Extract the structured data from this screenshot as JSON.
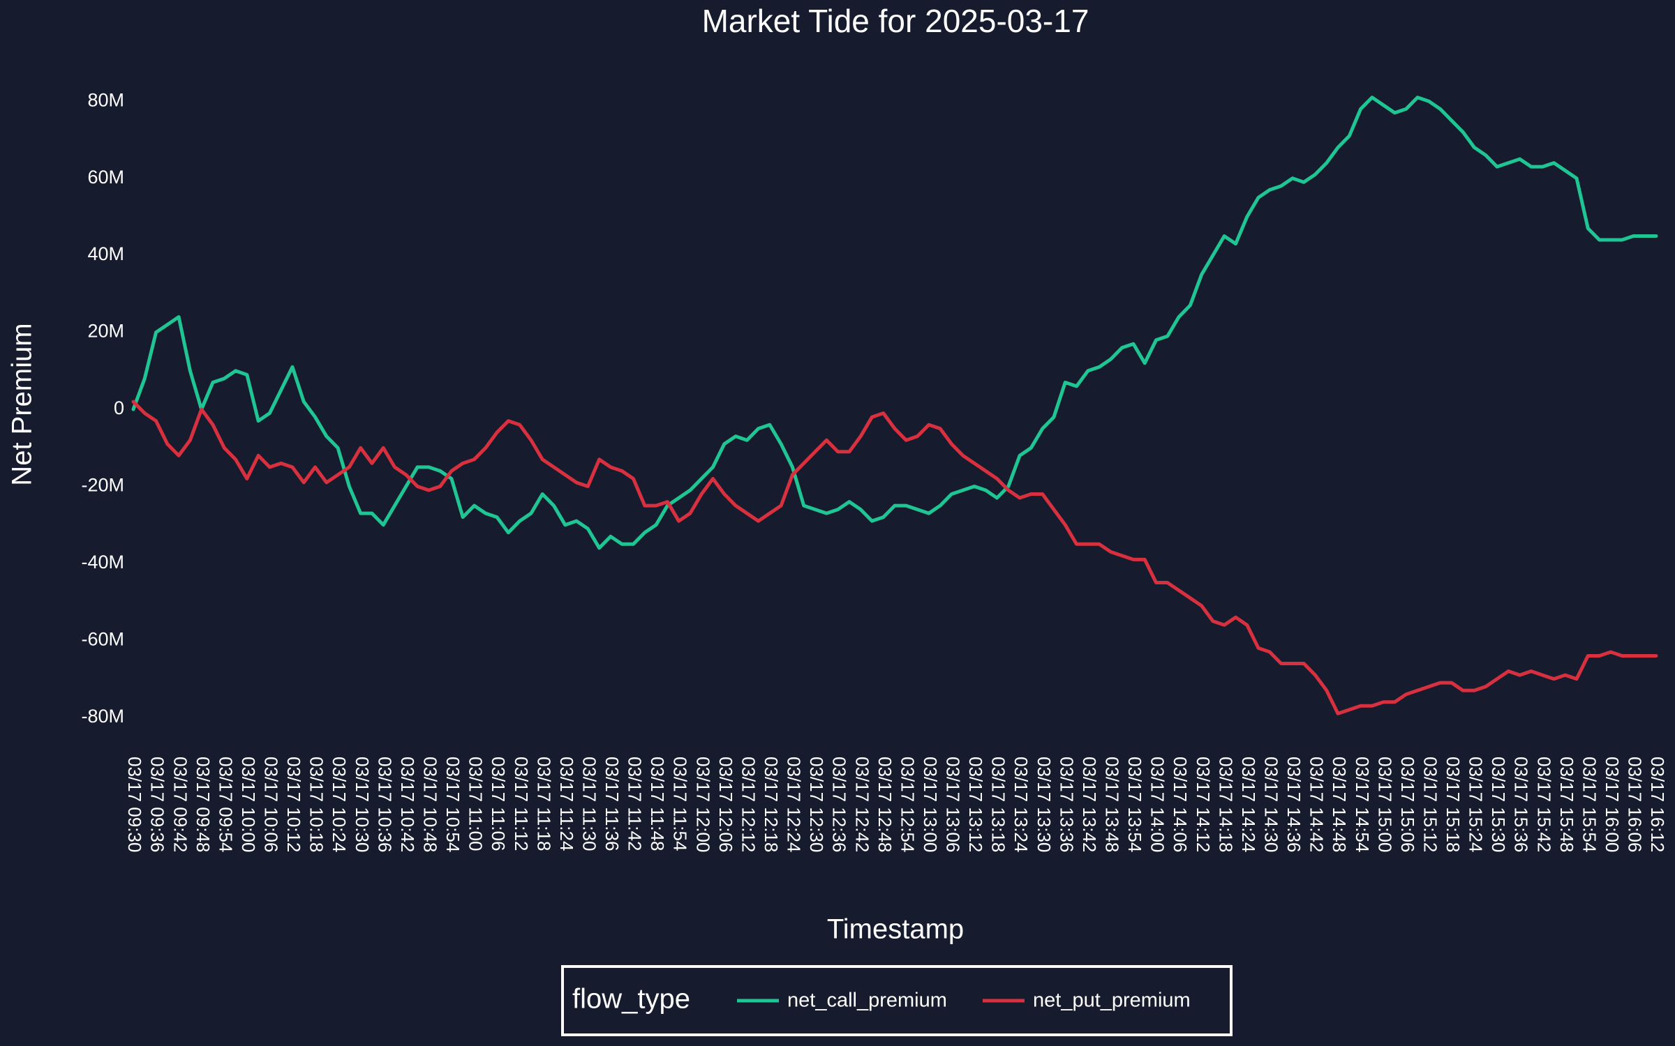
{
  "chart_data": {
    "type": "line",
    "title": "Market Tide for 2025-03-17",
    "x_label": "Timestamp",
    "y_label": "Net Premium",
    "legend_title": "flow_type",
    "legend": "bottom",
    "categories": [
      "03/17 09:30",
      null,
      "03/17 09:36",
      null,
      "03/17 09:42",
      null,
      "03/17 09:48",
      null,
      "03/17 09:54",
      null,
      "03/17 10:00",
      null,
      "03/17 10:06",
      null,
      "03/17 10:12",
      null,
      "03/17 10:18",
      null,
      "03/17 10:24",
      null,
      "03/17 10:30",
      null,
      "03/17 10:36",
      null,
      "03/17 10:42",
      null,
      "03/17 10:48",
      null,
      "03/17 10:54",
      null,
      "03/17 11:00",
      null,
      "03/17 11:06",
      null,
      "03/17 11:12",
      null,
      "03/17 11:18",
      null,
      "03/17 11:24",
      null,
      "03/17 11:30",
      null,
      "03/17 11:36",
      null,
      "03/17 11:42",
      null,
      "03/17 11:48",
      null,
      "03/17 11:54",
      null,
      "03/17 12:00",
      null,
      "03/17 12:06",
      null,
      "03/17 12:12",
      null,
      "03/17 12:18",
      null,
      "03/17 12:24",
      null,
      "03/17 12:30",
      null,
      "03/17 12:36",
      null,
      "03/17 12:42",
      null,
      "03/17 12:48",
      null,
      "03/17 12:54",
      null,
      "03/17 13:00",
      null,
      "03/17 13:06",
      null,
      "03/17 13:12",
      null,
      "03/17 13:18",
      null,
      "03/17 13:24",
      null,
      "03/17 13:30",
      null,
      "03/17 13:36",
      null,
      "03/17 13:42",
      null,
      "03/17 13:48",
      null,
      "03/17 13:54",
      null,
      "03/17 14:00",
      null,
      "03/17 14:06",
      null,
      "03/17 14:12",
      null,
      "03/17 14:18",
      null,
      "03/17 14:24",
      null,
      "03/17 14:30",
      null,
      "03/17 14:36",
      null,
      "03/17 14:42",
      null,
      "03/17 14:48",
      null,
      "03/17 14:54",
      null,
      "03/17 15:00",
      null,
      "03/17 15:06",
      null,
      "03/17 15:12",
      null,
      "03/17 15:18",
      null,
      "03/17 15:24",
      null,
      "03/17 15:30",
      null,
      "03/17 15:36",
      null,
      "03/17 15:42",
      null,
      "03/17 15:48",
      null,
      "03/17 15:54",
      null,
      "03/17 16:00",
      null,
      "03/17 16:06",
      null,
      "03/17 16:12"
    ],
    "series": [
      {
        "name": "net_call_premium",
        "color": "#1fc592",
        "values": [
          0,
          8000000,
          20000000,
          22000000,
          24000000,
          10000000,
          0,
          7000000,
          8000000,
          10000000,
          9000000,
          -3000000,
          -1000000,
          5000000,
          11000000,
          2000000,
          -2000000,
          -7000000,
          -10000000,
          -20000000,
          -27000000,
          -27000000,
          -30000000,
          -25000000,
          -20000000,
          -15000000,
          -15000000,
          -16000000,
          -18000000,
          -28000000,
          -25000000,
          -27000000,
          -28000000,
          -32000000,
          -29000000,
          -27000000,
          -22000000,
          -25000000,
          -30000000,
          -29000000,
          -31000000,
          -36000000,
          -33000000,
          -35000000,
          -35000000,
          -32000000,
          -30000000,
          -25000000,
          -23000000,
          -21000000,
          -18000000,
          -15000000,
          -9000000,
          -7000000,
          -8000000,
          -5000000,
          -4000000,
          -9000000,
          -15000000,
          -25000000,
          -26000000,
          -27000000,
          -26000000,
          -24000000,
          -26000000,
          -29000000,
          -28000000,
          -25000000,
          -25000000,
          -26000000,
          -27000000,
          -25000000,
          -22000000,
          -21000000,
          -20000000,
          -21000000,
          -23000000,
          -20000000,
          -12000000,
          -10000000,
          -5000000,
          -2000000,
          7000000,
          6000000,
          10000000,
          11000000,
          13000000,
          16000000,
          17000000,
          12000000,
          18000000,
          19000000,
          24000000,
          27000000,
          35000000,
          40000000,
          45000000,
          43000000,
          50000000,
          55000000,
          57000000,
          58000000,
          60000000,
          59000000,
          61000000,
          64000000,
          68000000,
          71000000,
          78000000,
          81000000,
          79000000,
          77000000,
          78000000,
          81000000,
          80000000,
          78000000,
          75000000,
          72000000,
          68000000,
          66000000,
          63000000,
          64000000,
          65000000,
          63000000,
          63000000,
          64000000,
          62000000,
          60000000,
          47000000,
          44000000,
          44000000,
          44000000,
          45000000,
          45000000,
          45000000
        ]
      },
      {
        "name": "net_put_premium",
        "color": "#d7303f",
        "values": [
          2000000,
          -1000000,
          -3000000,
          -9000000,
          -12000000,
          -8000000,
          0,
          -4000000,
          -10000000,
          -13000000,
          -18000000,
          -12000000,
          -15000000,
          -14000000,
          -15000000,
          -19000000,
          -15000000,
          -19000000,
          -17000000,
          -15000000,
          -10000000,
          -14000000,
          -10000000,
          -15000000,
          -17000000,
          -20000000,
          -21000000,
          -20000000,
          -16000000,
          -14000000,
          -13000000,
          -10000000,
          -6000000,
          -3000000,
          -4000000,
          -8000000,
          -13000000,
          -15000000,
          -17000000,
          -19000000,
          -20000000,
          -13000000,
          -15000000,
          -16000000,
          -18000000,
          -25000000,
          -25000000,
          -24000000,
          -29000000,
          -27000000,
          -22000000,
          -18000000,
          -22000000,
          -25000000,
          -27000000,
          -29000000,
          -27000000,
          -25000000,
          -17000000,
          -14000000,
          -11000000,
          -8000000,
          -11000000,
          -11000000,
          -7000000,
          -2000000,
          -1000000,
          -5000000,
          -8000000,
          -7000000,
          -4000000,
          -5000000,
          -9000000,
          -12000000,
          -14000000,
          -16000000,
          -18000000,
          -21000000,
          -23000000,
          -22000000,
          -22000000,
          -26000000,
          -30000000,
          -35000000,
          -35000000,
          -35000000,
          -37000000,
          -38000000,
          -39000000,
          -39000000,
          -45000000,
          -45000000,
          -47000000,
          -49000000,
          -51000000,
          -55000000,
          -56000000,
          -54000000,
          -56000000,
          -62000000,
          -63000000,
          -66000000,
          -66000000,
          -66000000,
          -69000000,
          -73000000,
          -79000000,
          -78000000,
          -77000000,
          -77000000,
          -76000000,
          -76000000,
          -74000000,
          -73000000,
          -72000000,
          -71000000,
          -71000000,
          -73000000,
          -73000000,
          -72000000,
          -70000000,
          -68000000,
          -69000000,
          -68000000,
          -69000000,
          -70000000,
          -69000000,
          -70000000,
          -64000000,
          -64000000,
          -63000000,
          -64000000,
          -64000000,
          -64000000,
          -64000000
        ]
      }
    ],
    "ylim": [
      -88000000,
      90000000
    ],
    "yticks": [
      {
        "value": -80000000,
        "label": "-80M"
      },
      {
        "value": -60000000,
        "label": "-60M"
      },
      {
        "value": -40000000,
        "label": "-40M"
      },
      {
        "value": -20000000,
        "label": "-20M"
      },
      0,
      {
        "value": 20000000,
        "label": "20M"
      },
      {
        "value": 40000000,
        "label": "40M"
      },
      {
        "value": 60000000,
        "label": "60M"
      },
      {
        "value": 80000000,
        "label": "80M"
      }
    ],
    "grid": false
  }
}
